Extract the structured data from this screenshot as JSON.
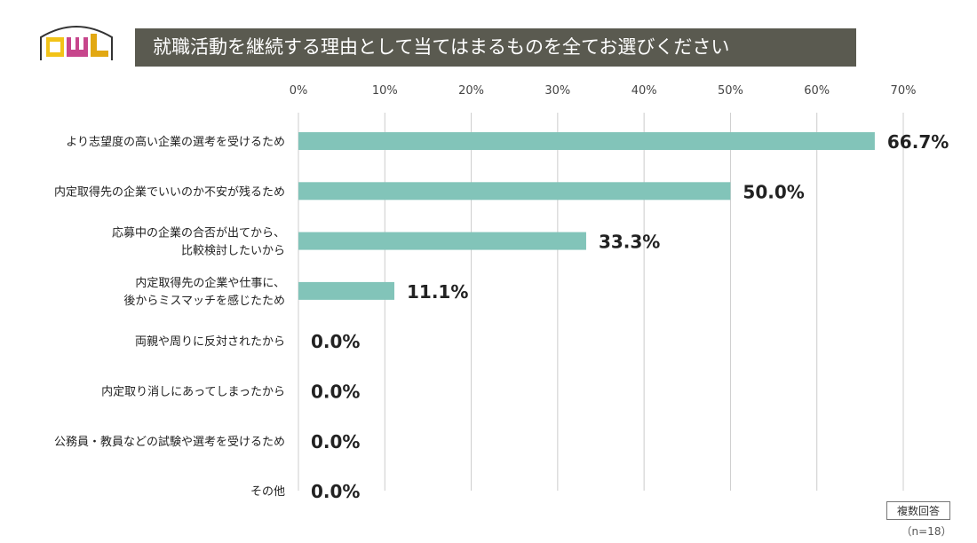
{
  "header": {
    "logo_text": "CWL",
    "title": "就職活動を継続する理由として当てはまるものを全てお選びください"
  },
  "colors": {
    "bar": "#82c4b9",
    "grid": "#cccccc",
    "title_bg": "#5a5a50"
  },
  "chart_data": {
    "type": "bar",
    "orientation": "horizontal",
    "categories": [
      [
        "より志望度の高い企業の選考を受けるため"
      ],
      [
        "内定取得先の企業でいいのか不安が残るため"
      ],
      [
        "応募中の企業の合否が出てから、",
        "比較検討したいから"
      ],
      [
        "内定取得先の企業や仕事に、",
        "後からミスマッチを感じたため"
      ],
      [
        "両親や周りに反対されたから"
      ],
      [
        "内定取り消しにあってしまったから"
      ],
      [
        "公務員・教員などの試験や選考を受けるため"
      ],
      [
        "その他"
      ]
    ],
    "values": [
      66.7,
      50.0,
      33.3,
      11.1,
      0.0,
      0.0,
      0.0,
      0.0
    ],
    "value_labels": [
      "66.7%",
      "50.0%",
      "33.3%",
      "11.1%",
      "0.0%",
      "0.0%",
      "0.0%",
      "0.0%"
    ],
    "xlim": [
      0,
      70
    ],
    "ticks": [
      0,
      10,
      20,
      30,
      40,
      50,
      60,
      70
    ],
    "tick_labels": [
      "0%",
      "10%",
      "20%",
      "30%",
      "40%",
      "50%",
      "60%",
      "70%"
    ],
    "grid": true
  },
  "notes": {
    "answer_type": "複数回答",
    "sample": "（n=18）"
  }
}
